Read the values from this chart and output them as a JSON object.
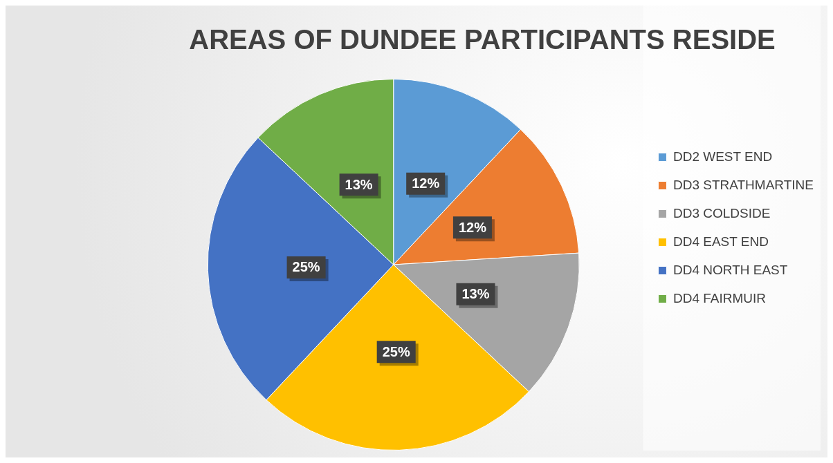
{
  "chart_data": {
    "type": "pie",
    "title": "AREAS OF DUNDEE PARTICIPANTS RESIDE",
    "categories": [
      "DD2 WEST END",
      "DD3 STRATHMARTINE",
      "DD3 COLDSIDE",
      "DD4 EAST END",
      "DD4 NORTH EAST",
      "DD4 FAIRMUIR"
    ],
    "values": [
      12,
      12,
      13,
      25,
      25,
      13
    ],
    "value_labels": [
      "12%",
      "12%",
      "13%",
      "25%",
      "25%",
      "13%"
    ],
    "colors": [
      "#5b9bd5",
      "#ed7d31",
      "#a5a5a5",
      "#ffc000",
      "#4472c4",
      "#70ad47"
    ],
    "legend": "right"
  }
}
